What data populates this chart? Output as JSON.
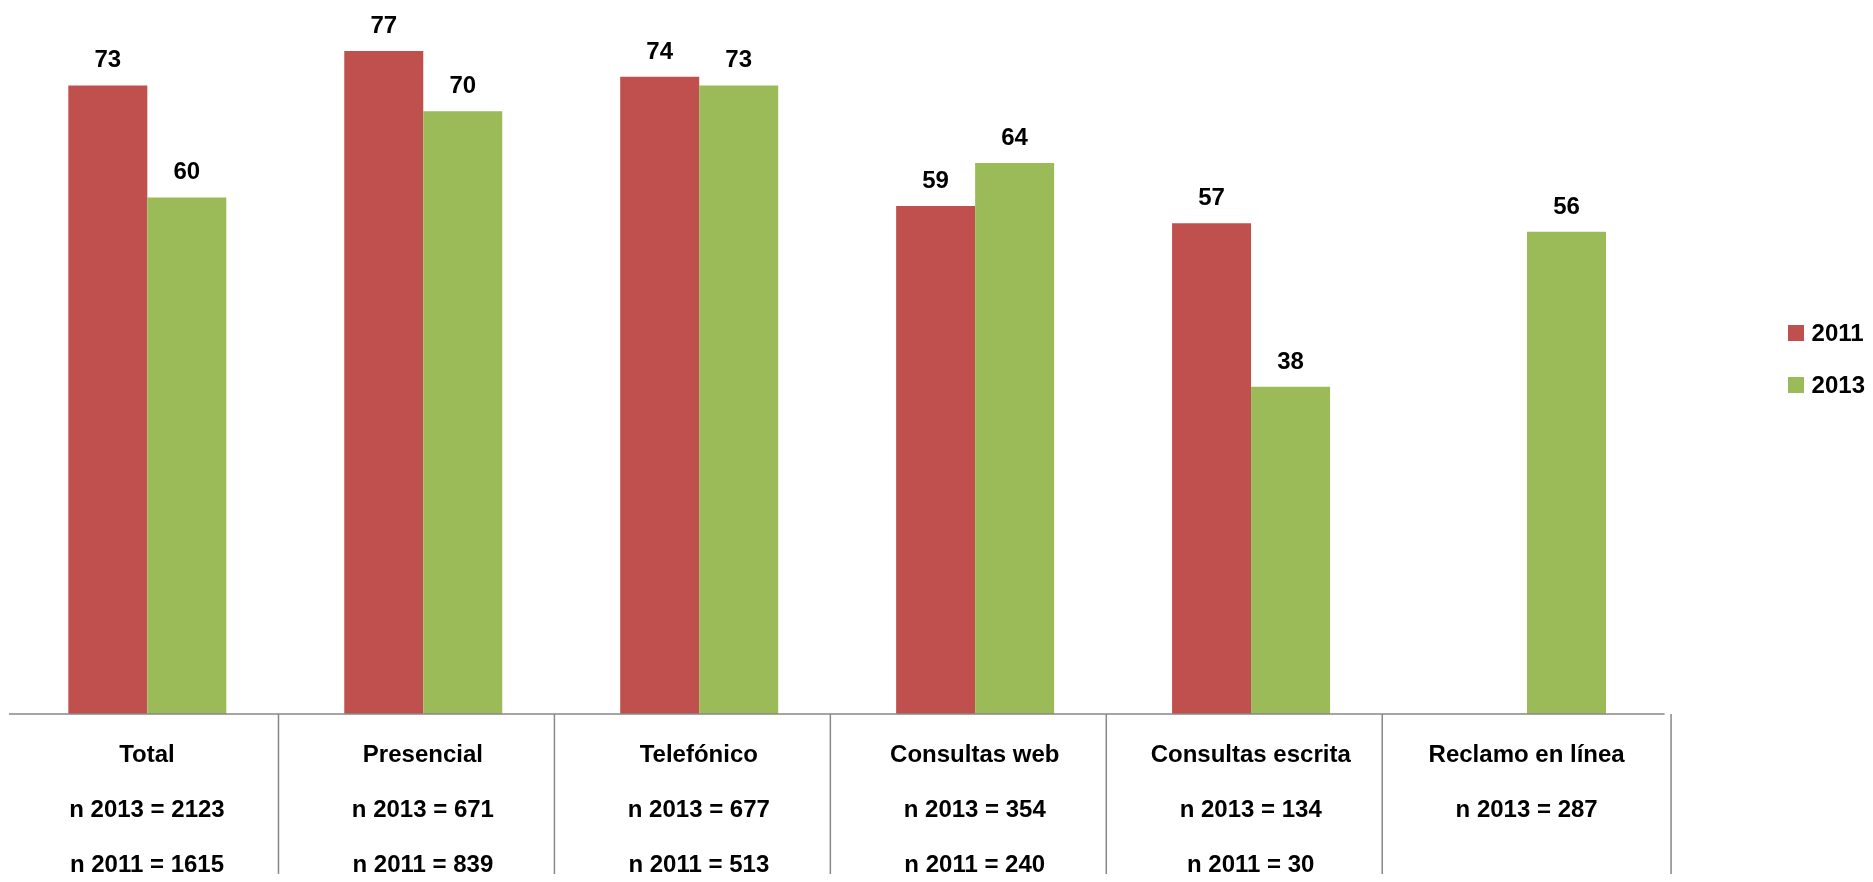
{
  "chart_data": {
    "type": "bar",
    "categories": [
      "Total\nn 2013 = 2123\nn 2011 = 1615",
      "Presencial\nn 2013 = 671\nn 2011 = 839",
      "Telefónico\nn 2013 = 677\nn 2011 = 513",
      "Consultas web\nn 2013 = 354\nn 2011 = 240",
      "Consultas escrita\nn 2013 = 134\nn 2011 = 30",
      "Reclamo en línea\nn 2013 = 287"
    ],
    "series": [
      {
        "name": "2011",
        "color": "#c0504d",
        "values": [
          73,
          77,
          74,
          59,
          57,
          null
        ]
      },
      {
        "name": "2013",
        "color": "#9bbb59",
        "values": [
          60,
          70,
          73,
          64,
          38,
          56
        ]
      }
    ],
    "data_labels": true,
    "legend": "right",
    "tick_labels": "x"
  }
}
